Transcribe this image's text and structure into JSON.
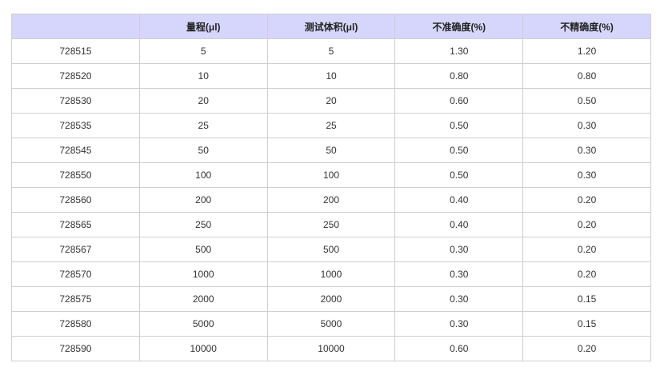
{
  "table": {
    "header_color": "#d6d6fc",
    "columns": [
      "",
      "量程(μl)",
      "测试体积(μl)",
      "不准确度(%)",
      "不精确度(%)"
    ],
    "rows": [
      [
        "728515",
        "5",
        "5",
        "1.30",
        "1.20"
      ],
      [
        "728520",
        "10",
        "10",
        "0.80",
        "0.80"
      ],
      [
        "728530",
        "20",
        "20",
        "0.60",
        "0.50"
      ],
      [
        "728535",
        "25",
        "25",
        "0.50",
        "0.30"
      ],
      [
        "728545",
        "50",
        "50",
        "0.50",
        "0.30"
      ],
      [
        "728550",
        "100",
        "100",
        "0.50",
        "0.30"
      ],
      [
        "728560",
        "200",
        "200",
        "0.40",
        "0.20"
      ],
      [
        "728565",
        "250",
        "250",
        "0.40",
        "0.20"
      ],
      [
        "728567",
        "500",
        "500",
        "0.30",
        "0.20"
      ],
      [
        "728570",
        "1000",
        "1000",
        "0.30",
        "0.20"
      ],
      [
        "728575",
        "2000",
        "2000",
        "0.30",
        "0.15"
      ],
      [
        "728580",
        "5000",
        "5000",
        "0.30",
        "0.15"
      ],
      [
        "728590",
        "10000",
        "10000",
        "0.60",
        "0.20"
      ]
    ]
  }
}
